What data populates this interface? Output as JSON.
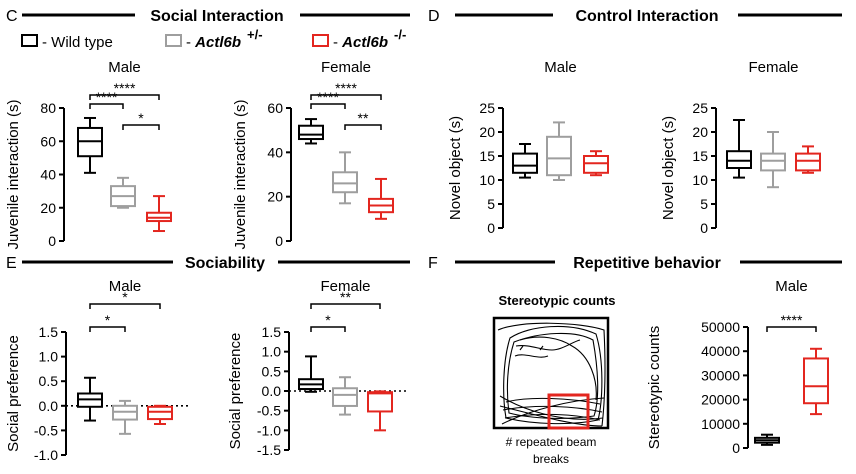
{
  "panels": {
    "C": {
      "letter": "C",
      "heading": "Social Interaction"
    },
    "D": {
      "letter": "D",
      "heading": "Control Interaction"
    },
    "E": {
      "letter": "E",
      "heading": "Sociability"
    },
    "F": {
      "letter": "F",
      "heading": "Repetitive behavior"
    }
  },
  "legend": {
    "wild_type": "- Wild type",
    "het_prefix": "- ",
    "het_gene": "Actl6b",
    "het_sup": "+/-",
    "ko_prefix": "- ",
    "ko_gene": "Actl6b",
    "ko_sup": "-/-"
  },
  "colors": {
    "wild_type": "#000000",
    "het": "#9e9e9e",
    "ko": "#e3261f"
  },
  "stereotypy": {
    "title": "Stereotypic counts",
    "caption_line1": "# repeated beam",
    "caption_line2": "breaks"
  },
  "chart_data": [
    {
      "id": "C-male",
      "type": "box",
      "title": "Male",
      "ylabel": "Juvenile interaction (s)",
      "ylim": [
        0,
        80
      ],
      "yticks": [
        0,
        20,
        40,
        60,
        80
      ],
      "groups": [
        "Wild type",
        "Actl6b +/-",
        "Actl6b -/-"
      ],
      "boxes": [
        {
          "min": 41,
          "q1": 51,
          "median": 60,
          "q3": 68,
          "max": 74
        },
        {
          "min": 20,
          "q1": 21,
          "median": 27,
          "q3": 33,
          "max": 38
        },
        {
          "min": 6,
          "q1": 12,
          "median": 14,
          "q3": 17,
          "max": 27
        }
      ],
      "significance": [
        {
          "from": 0,
          "to": 2,
          "label": "****"
        },
        {
          "from": 0,
          "to": 1,
          "label": "****"
        },
        {
          "from": 1,
          "to": 2,
          "label": "*"
        }
      ]
    },
    {
      "id": "C-female",
      "type": "box",
      "title": "Female",
      "ylabel": "Juvenile interaction (s)",
      "ylim": [
        0,
        60
      ],
      "yticks": [
        0,
        20,
        40,
        60
      ],
      "groups": [
        "Wild type",
        "Actl6b +/-",
        "Actl6b -/-"
      ],
      "boxes": [
        {
          "min": 44,
          "q1": 46,
          "median": 48,
          "q3": 52,
          "max": 55
        },
        {
          "min": 17,
          "q1": 22,
          "median": 26,
          "q3": 31,
          "max": 40
        },
        {
          "min": 10,
          "q1": 13,
          "median": 16,
          "q3": 19,
          "max": 28
        }
      ],
      "significance": [
        {
          "from": 0,
          "to": 2,
          "label": "****"
        },
        {
          "from": 0,
          "to": 1,
          "label": "****"
        },
        {
          "from": 1,
          "to": 2,
          "label": "**"
        }
      ]
    },
    {
      "id": "D-male",
      "type": "box",
      "title": "Male",
      "ylabel": "Novel object (s)",
      "ylim": [
        0,
        25
      ],
      "yticks": [
        0,
        5,
        10,
        15,
        20,
        25
      ],
      "groups": [
        "Wild type",
        "Actl6b +/-",
        "Actl6b -/-"
      ],
      "boxes": [
        {
          "min": 10.5,
          "q1": 11.5,
          "median": 13,
          "q3": 15.5,
          "max": 17.5
        },
        {
          "min": 10,
          "q1": 11,
          "median": 14.5,
          "q3": 19,
          "max": 22
        },
        {
          "min": 11,
          "q1": 11.5,
          "median": 13.5,
          "q3": 15,
          "max": 16
        }
      ],
      "significance": []
    },
    {
      "id": "D-female",
      "type": "box",
      "title": "Female",
      "ylabel": "Novel object (s)",
      "ylim": [
        0,
        25
      ],
      "yticks": [
        0,
        5,
        10,
        15,
        20,
        25
      ],
      "groups": [
        "Wild type",
        "Actl6b +/-",
        "Actl6b -/-"
      ],
      "boxes": [
        {
          "min": 10.5,
          "q1": 12.5,
          "median": 14,
          "q3": 16,
          "max": 22.5
        },
        {
          "min": 8.5,
          "q1": 12,
          "median": 14,
          "q3": 15.5,
          "max": 20
        },
        {
          "min": 11.5,
          "q1": 12,
          "median": 14,
          "q3": 15.5,
          "max": 17
        }
      ],
      "significance": []
    },
    {
      "id": "E-male",
      "type": "box",
      "title": "Male",
      "ylabel": "Social preference",
      "ylim": [
        -1.0,
        1.5
      ],
      "yticks": [
        -1.0,
        -0.5,
        0.0,
        0.5,
        1.0,
        1.5
      ],
      "tick_labels": [
        "-1.0",
        "-0.5",
        "0.0",
        "0.5",
        "1.0",
        "1.5"
      ],
      "reference_line": 0,
      "groups": [
        "Wild type",
        "Actl6b +/-",
        "Actl6b -/-"
      ],
      "boxes": [
        {
          "min": -0.3,
          "q1": -0.02,
          "median": 0.13,
          "q3": 0.25,
          "max": 0.57
        },
        {
          "min": -0.57,
          "q1": -0.28,
          "median": -0.12,
          "q3": 0.0,
          "max": 0.1
        },
        {
          "min": -0.37,
          "q1": -0.27,
          "median": -0.12,
          "q3": -0.02,
          "max": 0.0
        }
      ],
      "significance": [
        {
          "from": 0,
          "to": 2,
          "label": "*"
        },
        {
          "from": 0,
          "to": 1,
          "label": "*"
        }
      ]
    },
    {
      "id": "E-female",
      "type": "box",
      "title": "Female",
      "ylabel": "Social preference",
      "ylim": [
        -1.5,
        1.5
      ],
      "yticks": [
        -1.5,
        -1.0,
        -0.5,
        0.0,
        0.5,
        1.0,
        1.5
      ],
      "tick_labels": [
        "-1.5",
        "-1.0",
        "-0.5",
        "0.0",
        "0.5",
        "1.0",
        "1.5"
      ],
      "reference_line": 0,
      "groups": [
        "Wild type",
        "Actl6b +/-",
        "Actl6b -/-"
      ],
      "boxes": [
        {
          "min": -0.02,
          "q1": 0.05,
          "median": 0.17,
          "q3": 0.3,
          "max": 0.88
        },
        {
          "min": -0.6,
          "q1": -0.38,
          "median": -0.1,
          "q3": 0.07,
          "max": 0.35
        },
        {
          "min": -1.0,
          "q1": -0.52,
          "median": -0.06,
          "q3": -0.03,
          "max": -0.01
        }
      ],
      "significance": [
        {
          "from": 0,
          "to": 2,
          "label": "**"
        },
        {
          "from": 0,
          "to": 1,
          "label": "*"
        }
      ]
    },
    {
      "id": "F-male",
      "type": "box",
      "title": "Male",
      "ylabel": "Stereotypic counts",
      "ylim": [
        0,
        50000
      ],
      "yticks": [
        0,
        10000,
        20000,
        30000,
        40000,
        50000
      ],
      "tick_labels": [
        "0",
        "10000",
        "20000",
        "30000",
        "40000",
        "50000"
      ],
      "groups": [
        "Wild type",
        "Actl6b -/-"
      ],
      "group_colors": [
        "wild_type",
        "ko"
      ],
      "boxes": [
        {
          "min": 1300,
          "q1": 2200,
          "median": 3200,
          "q3": 4200,
          "max": 5500
        },
        {
          "min": 14000,
          "q1": 18500,
          "median": 25500,
          "q3": 37000,
          "max": 41000
        }
      ],
      "significance": [
        {
          "from": 0,
          "to": 1,
          "label": "****"
        }
      ]
    }
  ]
}
